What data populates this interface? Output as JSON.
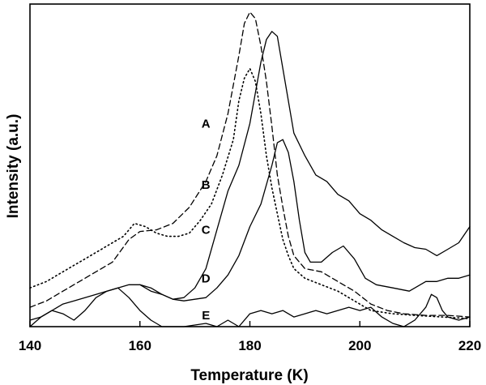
{
  "chart_data": {
    "type": "line",
    "xlabel": "Temperature (K)",
    "ylabel": "Intensity (a.u.)",
    "xlim": [
      140,
      220
    ],
    "ylim": [
      0,
      1
    ],
    "xticks": [
      140,
      160,
      180,
      200,
      220
    ],
    "y_ticks_labeled": false,
    "grid": false,
    "legend": "none (curves labeled inline A-E)",
    "series": [
      {
        "name": "A",
        "style": "dashed",
        "label_at": [
          172,
          0.63
        ],
        "points": [
          [
            140,
            0.06
          ],
          [
            143,
            0.08
          ],
          [
            146,
            0.11
          ],
          [
            149,
            0.14
          ],
          [
            152,
            0.17
          ],
          [
            155,
            0.2
          ],
          [
            158,
            0.27
          ],
          [
            160,
            0.295
          ],
          [
            163,
            0.3
          ],
          [
            166,
            0.32
          ],
          [
            169,
            0.37
          ],
          [
            172,
            0.45
          ],
          [
            174,
            0.53
          ],
          [
            176,
            0.66
          ],
          [
            178,
            0.84
          ],
          [
            179,
            0.94
          ],
          [
            180,
            0.975
          ],
          [
            181,
            0.955
          ],
          [
            182,
            0.87
          ],
          [
            183,
            0.76
          ],
          [
            184,
            0.62
          ],
          [
            185,
            0.47
          ],
          [
            186,
            0.37
          ],
          [
            187,
            0.28
          ],
          [
            188,
            0.22
          ],
          [
            190,
            0.18
          ],
          [
            193,
            0.17
          ],
          [
            196,
            0.14
          ],
          [
            199,
            0.11
          ],
          [
            202,
            0.07
          ],
          [
            205,
            0.05
          ],
          [
            208,
            0.04
          ],
          [
            212,
            0.035
          ],
          [
            216,
            0.035
          ],
          [
            220,
            0.03
          ]
        ]
      },
      {
        "name": "B",
        "style": "dotted",
        "label_at": [
          172,
          0.44
        ],
        "points": [
          [
            140,
            0.12
          ],
          [
            143,
            0.14
          ],
          [
            146,
            0.17
          ],
          [
            149,
            0.2
          ],
          [
            152,
            0.23
          ],
          [
            155,
            0.26
          ],
          [
            157,
            0.28
          ],
          [
            159,
            0.32
          ],
          [
            161,
            0.31
          ],
          [
            163,
            0.29
          ],
          [
            165,
            0.28
          ],
          [
            167,
            0.28
          ],
          [
            169,
            0.29
          ],
          [
            171,
            0.33
          ],
          [
            173,
            0.38
          ],
          [
            175,
            0.47
          ],
          [
            177,
            0.58
          ],
          [
            178,
            0.7
          ],
          [
            179,
            0.77
          ],
          [
            180,
            0.8
          ],
          [
            181,
            0.76
          ],
          [
            182,
            0.66
          ],
          [
            183,
            0.53
          ],
          [
            184,
            0.43
          ],
          [
            185,
            0.35
          ],
          [
            186,
            0.27
          ],
          [
            187,
            0.22
          ],
          [
            188,
            0.18
          ],
          [
            190,
            0.15
          ],
          [
            193,
            0.13
          ],
          [
            196,
            0.11
          ],
          [
            199,
            0.08
          ],
          [
            202,
            0.05
          ],
          [
            206,
            0.04
          ],
          [
            210,
            0.035
          ],
          [
            215,
            0.03
          ],
          [
            220,
            0.025
          ]
        ]
      },
      {
        "name": "C",
        "style": "solid",
        "label_at": [
          172,
          0.3
        ],
        "points": [
          [
            160,
            0.13
          ],
          [
            162,
            0.12
          ],
          [
            164,
            0.1
          ],
          [
            166,
            0.085
          ],
          [
            168,
            0.09
          ],
          [
            170,
            0.12
          ],
          [
            172,
            0.18
          ],
          [
            174,
            0.3
          ],
          [
            176,
            0.42
          ],
          [
            178,
            0.5
          ],
          [
            180,
            0.63
          ],
          [
            182,
            0.82
          ],
          [
            183,
            0.89
          ],
          [
            184,
            0.915
          ],
          [
            185,
            0.9
          ],
          [
            186,
            0.8
          ],
          [
            187,
            0.7
          ],
          [
            188,
            0.6
          ],
          [
            190,
            0.53
          ],
          [
            192,
            0.47
          ],
          [
            194,
            0.45
          ],
          [
            196,
            0.41
          ],
          [
            198,
            0.39
          ],
          [
            200,
            0.35
          ],
          [
            202,
            0.33
          ],
          [
            204,
            0.3
          ],
          [
            206,
            0.28
          ],
          [
            208,
            0.26
          ],
          [
            210,
            0.245
          ],
          [
            212,
            0.24
          ],
          [
            214,
            0.22
          ],
          [
            216,
            0.24
          ],
          [
            218,
            0.26
          ],
          [
            220,
            0.31
          ]
        ]
      },
      {
        "name": "D",
        "style": "solid",
        "label_at": [
          172,
          0.15
        ],
        "points": [
          [
            140,
            0.02
          ],
          [
            142,
            0.03
          ],
          [
            144,
            0.05
          ],
          [
            146,
            0.07
          ],
          [
            148,
            0.08
          ],
          [
            150,
            0.09
          ],
          [
            152,
            0.1
          ],
          [
            154,
            0.11
          ],
          [
            156,
            0.12
          ],
          [
            158,
            0.13
          ],
          [
            160,
            0.13
          ],
          [
            162,
            0.11
          ],
          [
            164,
            0.1
          ],
          [
            166,
            0.085
          ],
          [
            168,
            0.08
          ],
          [
            170,
            0.085
          ],
          [
            172,
            0.09
          ],
          [
            174,
            0.12
          ],
          [
            176,
            0.16
          ],
          [
            178,
            0.22
          ],
          [
            180,
            0.31
          ],
          [
            182,
            0.38
          ],
          [
            184,
            0.5
          ],
          [
            185,
            0.57
          ],
          [
            186,
            0.58
          ],
          [
            187,
            0.54
          ],
          [
            188,
            0.45
          ],
          [
            189,
            0.33
          ],
          [
            190,
            0.23
          ],
          [
            191,
            0.2
          ],
          [
            193,
            0.2
          ],
          [
            195,
            0.23
          ],
          [
            197,
            0.25
          ],
          [
            199,
            0.21
          ],
          [
            201,
            0.15
          ],
          [
            203,
            0.13
          ],
          [
            206,
            0.12
          ],
          [
            209,
            0.11
          ],
          [
            212,
            0.14
          ],
          [
            214,
            0.14
          ],
          [
            216,
            0.15
          ],
          [
            218,
            0.15
          ],
          [
            220,
            0.16
          ]
        ]
      },
      {
        "name": "E",
        "style": "solid",
        "label_at": [
          172,
          0.035
        ],
        "points": [
          [
            140,
            0.0
          ],
          [
            142,
            0.03
          ],
          [
            144,
            0.05
          ],
          [
            146,
            0.04
          ],
          [
            148,
            0.02
          ],
          [
            150,
            0.05
          ],
          [
            152,
            0.09
          ],
          [
            154,
            0.11
          ],
          [
            156,
            0.12
          ],
          [
            158,
            0.09
          ],
          [
            160,
            0.05
          ],
          [
            162,
            0.02
          ],
          [
            164,
            0.0
          ],
          [
            168,
            0.0
          ],
          [
            172,
            0.01
          ],
          [
            174,
            0.0
          ],
          [
            176,
            0.02
          ],
          [
            178,
            0.0
          ],
          [
            180,
            0.04
          ],
          [
            182,
            0.05
          ],
          [
            184,
            0.04
          ],
          [
            186,
            0.05
          ],
          [
            188,
            0.03
          ],
          [
            190,
            0.04
          ],
          [
            192,
            0.05
          ],
          [
            194,
            0.04
          ],
          [
            196,
            0.05
          ],
          [
            198,
            0.06
          ],
          [
            200,
            0.05
          ],
          [
            202,
            0.06
          ],
          [
            204,
            0.03
          ],
          [
            206,
            0.01
          ],
          [
            208,
            0.0
          ],
          [
            210,
            0.02
          ],
          [
            212,
            0.06
          ],
          [
            213,
            0.1
          ],
          [
            214,
            0.09
          ],
          [
            215,
            0.05
          ],
          [
            216,
            0.03
          ],
          [
            218,
            0.02
          ],
          [
            220,
            0.03
          ]
        ]
      }
    ]
  }
}
